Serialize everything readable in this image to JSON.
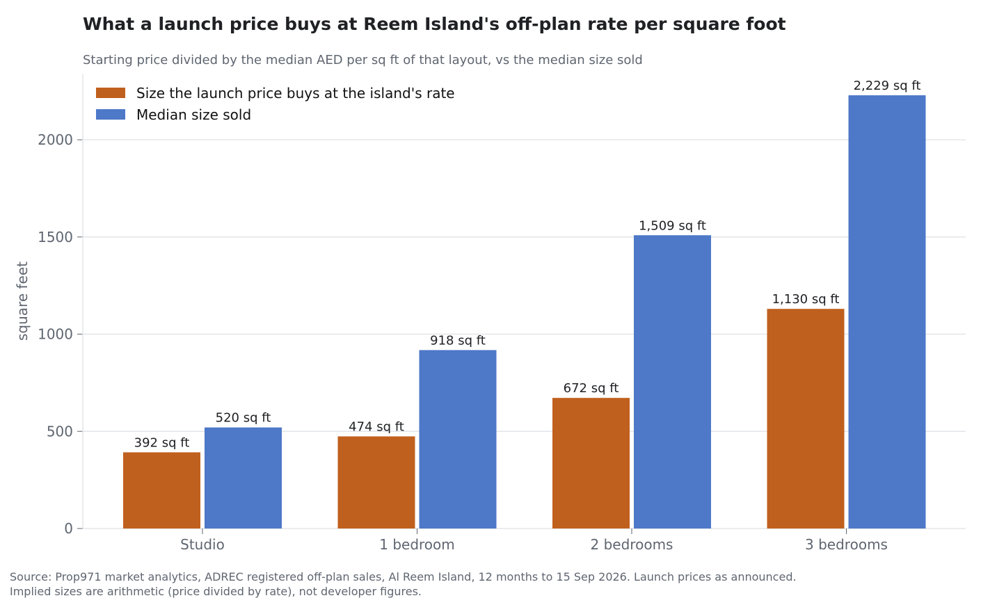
{
  "chart_data": {
    "type": "bar",
    "title": "What a launch price buys at Reem Island's off-plan rate per square foot",
    "subtitle": "Starting price divided by the median AED per sq ft of that layout, vs the median size sold",
    "ylabel": "square feet",
    "xlabel": "",
    "categories": [
      "Studio",
      "1 bedroom",
      "2 bedrooms",
      "3 bedrooms"
    ],
    "ylim": [
      0,
      2340
    ],
    "yticks": [
      0,
      500,
      1000,
      1500,
      2000
    ],
    "grid": true,
    "legend_position": "top-left",
    "series": [
      {
        "name": "Size the launch price buys at the island's rate",
        "color": "#c0601e",
        "values": [
          392,
          474,
          672,
          1130
        ],
        "labels": [
          "392 sq ft",
          "474 sq ft",
          "672 sq ft",
          "1,130 sq ft"
        ]
      },
      {
        "name": "Median size sold",
        "color": "#4e78c8",
        "values": [
          520,
          918,
          1509,
          2229
        ],
        "labels": [
          "520 sq ft",
          "918 sq ft",
          "1,509 sq ft",
          "2,229 sq ft"
        ]
      }
    ]
  },
  "source": {
    "line1": "Source: Prop971 market analytics, ADREC registered off-plan sales, Al Reem Island, 12 months to 15 Sep 2026. Launch prices as announced.",
    "line2": "Implied sizes are arithmetic (price divided by rate), not developer figures."
  }
}
